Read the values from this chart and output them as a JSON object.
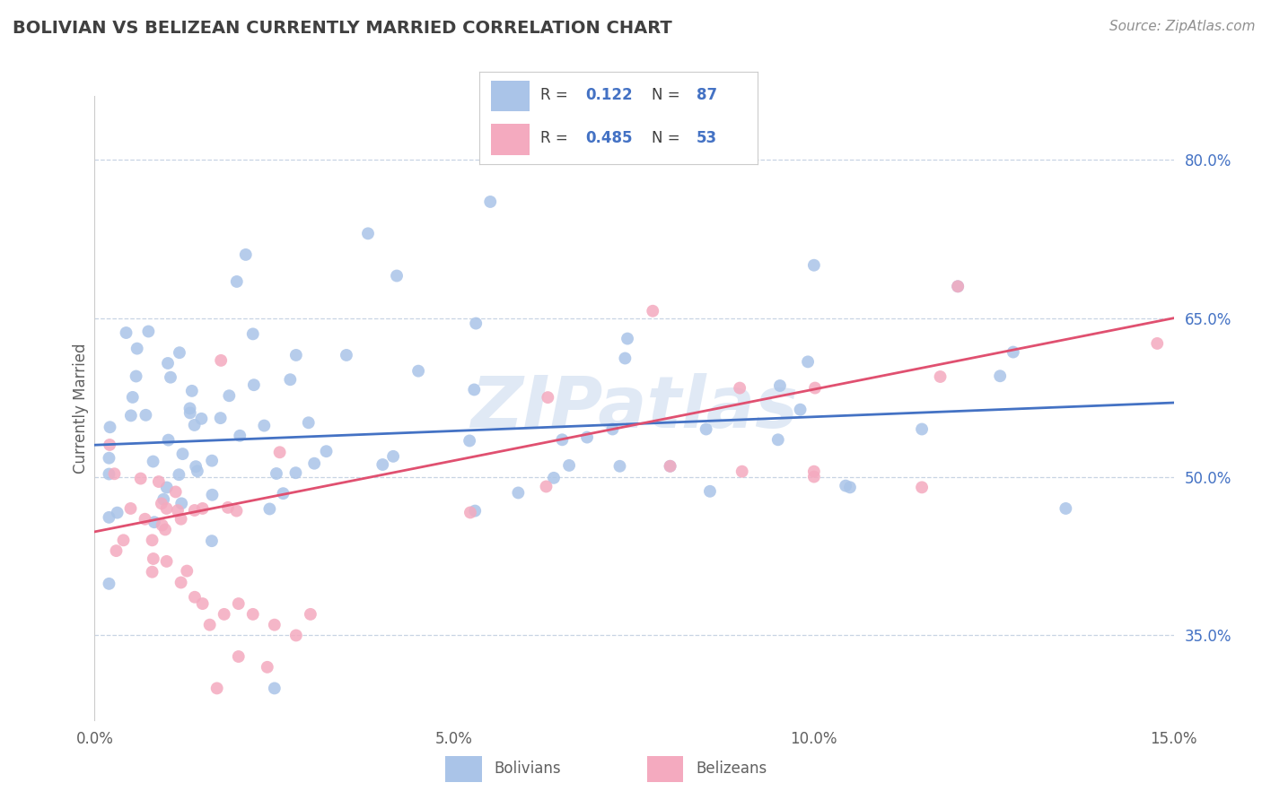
{
  "title": "BOLIVIAN VS BELIZEAN CURRENTLY MARRIED CORRELATION CHART",
  "source_text": "Source: ZipAtlas.com",
  "ylabel": "Currently Married",
  "xlim": [
    0.0,
    0.15
  ],
  "ylim": [
    0.27,
    0.86
  ],
  "xticks": [
    0.0,
    0.05,
    0.1,
    0.15
  ],
  "xtick_labels": [
    "0.0%",
    "5.0%",
    "10.0%",
    "15.0%"
  ],
  "ytick_vals_right": [
    0.35,
    0.5,
    0.65,
    0.8
  ],
  "ytick_labels_right": [
    "35.0%",
    "50.0%",
    "65.0%",
    "80.0%"
  ],
  "legend_R_blue": "0.122",
  "legend_N_blue": "87",
  "legend_R_pink": "0.485",
  "legend_N_pink": "53",
  "blue_scatter_color": "#aac4e8",
  "pink_scatter_color": "#f4aabf",
  "blue_line_color": "#4472C4",
  "pink_line_color": "#E05070",
  "title_color": "#404040",
  "watermark_color": "#c8d8ee",
  "background_color": "#ffffff",
  "grid_color": "#c8d4e4",
  "text_color": "#606060",
  "source_color": "#909090",
  "blue_line_y0": 0.53,
  "blue_line_y1": 0.57,
  "pink_line_y0": 0.448,
  "pink_line_y1": 0.65
}
